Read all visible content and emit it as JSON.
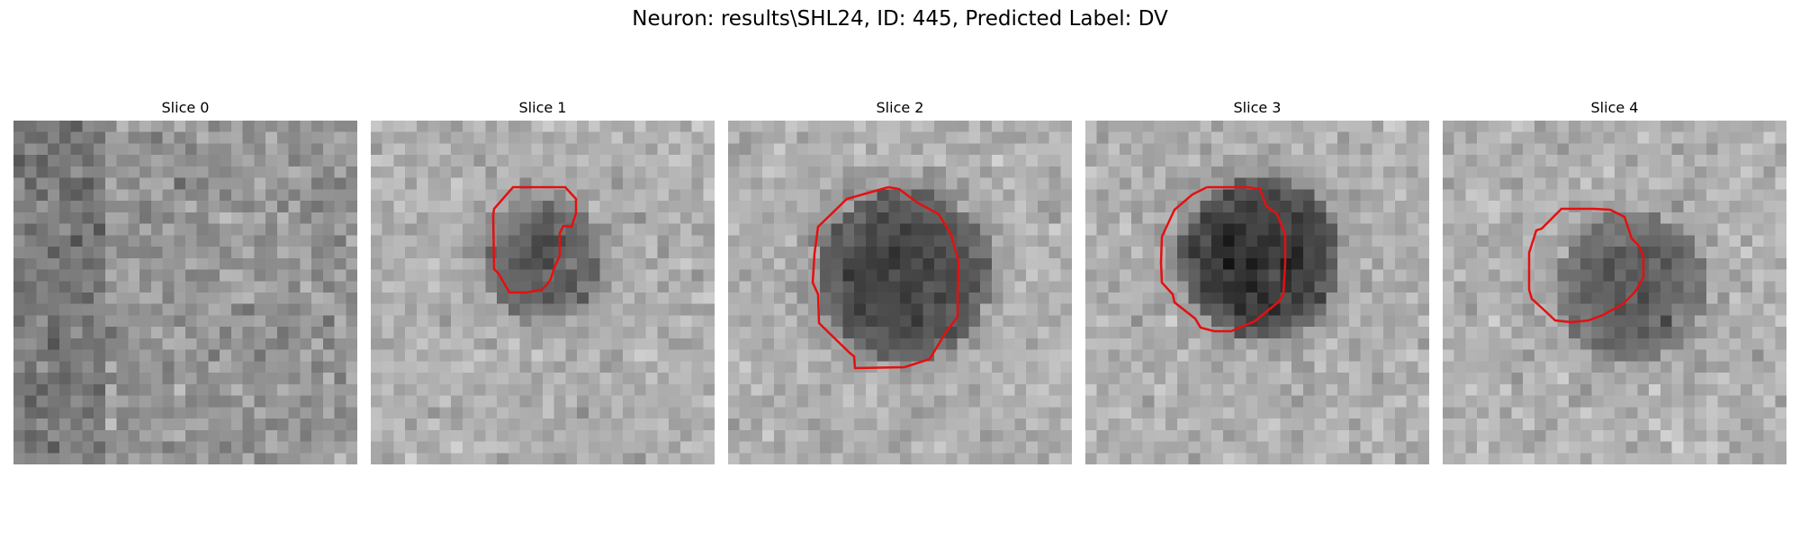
{
  "figure": {
    "title": "Neuron: results\\SHL24, ID: 445, Predicted Label: DV"
  },
  "slices": [
    {
      "title": "Slice 0",
      "has_contour": false
    },
    {
      "title": "Slice 1",
      "has_contour": true
    },
    {
      "title": "Slice 2",
      "has_contour": true
    },
    {
      "title": "Slice 3",
      "has_contour": true
    },
    {
      "title": "Slice 4",
      "has_contour": true
    }
  ],
  "colors": {
    "contour": "#e41010",
    "background": "#ffffff"
  },
  "colormap": "gray"
}
